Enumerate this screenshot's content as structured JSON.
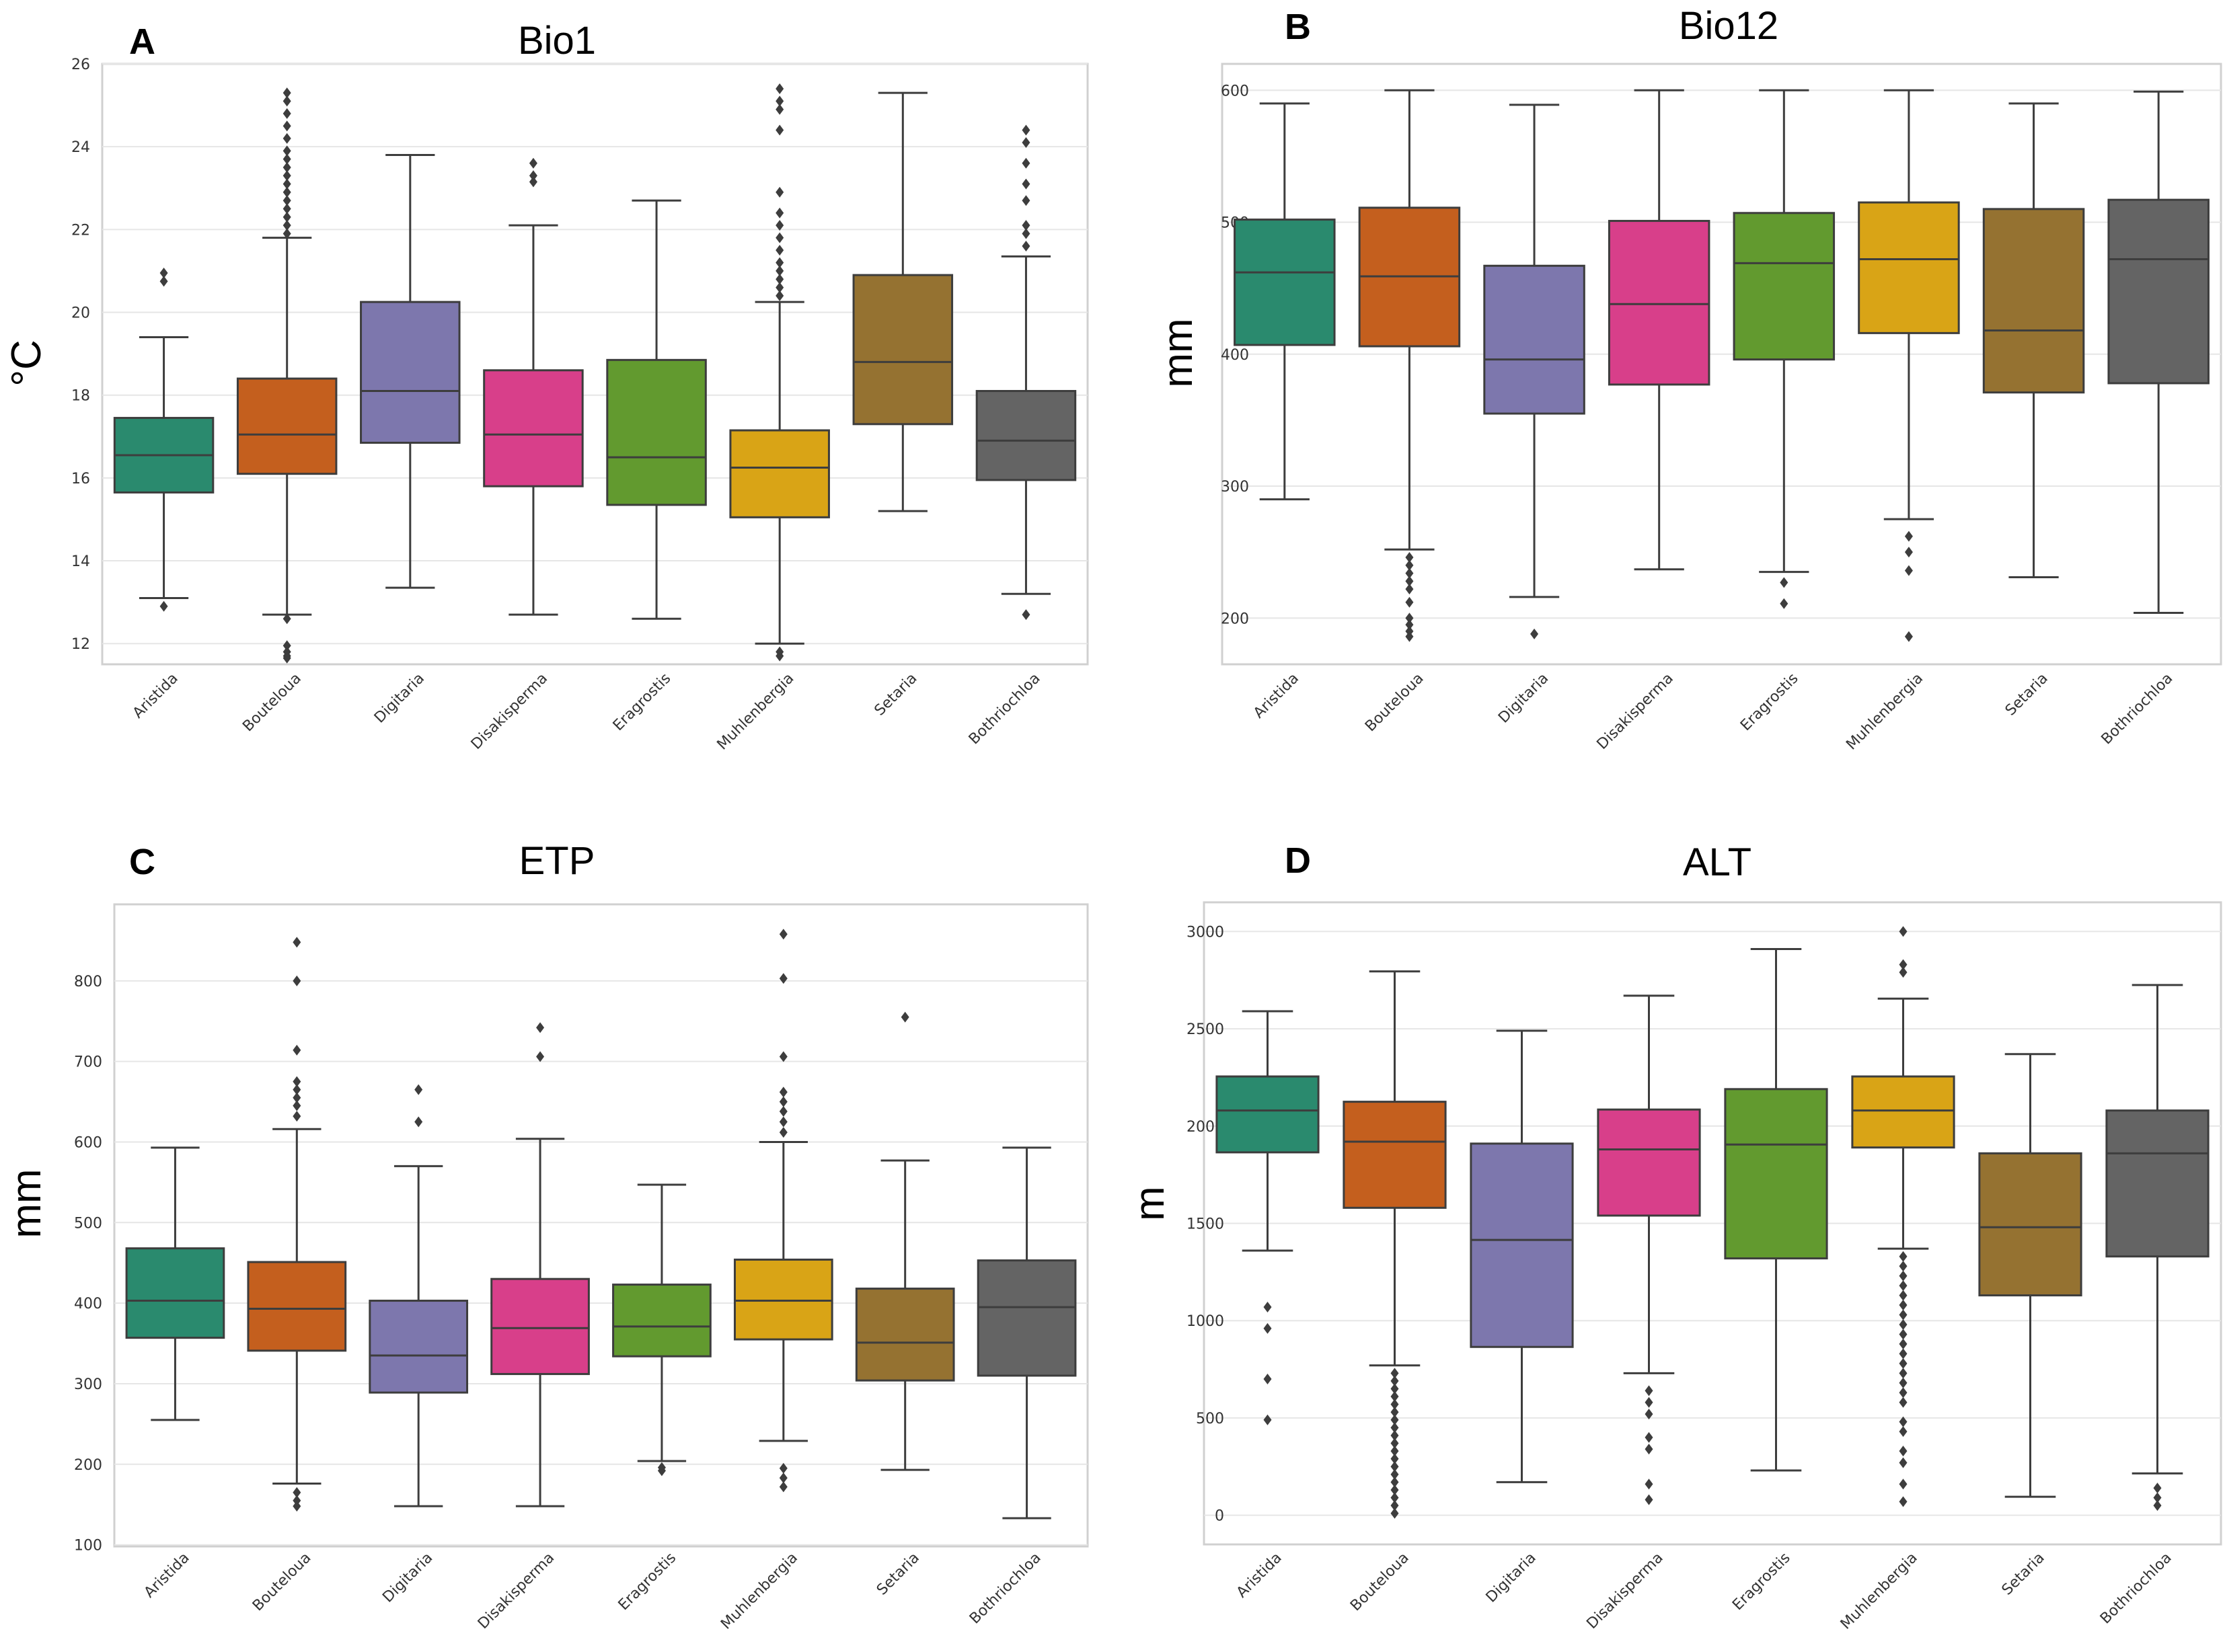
{
  "chart_data": [
    {
      "type": "box",
      "panel": "A",
      "title": "Bio1",
      "ylabel": "°C",
      "ylim": [
        11.5,
        26
      ],
      "yticks": [
        12,
        14,
        16,
        18,
        20,
        22,
        24,
        26
      ],
      "categories": [
        "Aristida",
        "Bouteloua",
        "Digitaria",
        "Disakisperma",
        "Eragrostis",
        "Muhlenbergia",
        "Setaria",
        "Bothriochloa"
      ],
      "colors": [
        "#2a8a6e",
        "#c45f1e",
        "#7d77ad",
        "#d83f8a",
        "#629a2f",
        "#d9a416",
        "#957231",
        "#646464"
      ],
      "boxes": [
        {
          "whislo": 13.1,
          "q1": 15.65,
          "med": 16.55,
          "q3": 17.45,
          "whishi": 19.4,
          "fliers": [
            12.9,
            20.75,
            20.95
          ]
        },
        {
          "whislo": 12.7,
          "q1": 16.1,
          "med": 17.05,
          "q3": 18.4,
          "whishi": 21.8,
          "fliers": [
            12.6,
            11.95,
            11.8,
            11.7,
            11.65,
            21.9,
            22.1,
            22.3,
            22.5,
            22.7,
            22.9,
            23.1,
            23.3,
            23.5,
            23.7,
            23.9,
            24.2,
            24.5,
            24.8,
            25.1,
            25.3
          ]
        },
        {
          "whislo": 13.35,
          "q1": 16.85,
          "med": 18.1,
          "q3": 20.25,
          "whishi": 23.8,
          "fliers": []
        },
        {
          "whislo": 12.7,
          "q1": 15.8,
          "med": 17.05,
          "q3": 18.6,
          "whishi": 22.1,
          "fliers": [
            23.15,
            23.3,
            23.6
          ]
        },
        {
          "whislo": 12.6,
          "q1": 15.35,
          "med": 16.5,
          "q3": 18.85,
          "whishi": 22.7,
          "fliers": []
        },
        {
          "whislo": 12.0,
          "q1": 15.05,
          "med": 16.25,
          "q3": 17.15,
          "whishi": 20.25,
          "fliers": [
            11.8,
            11.7,
            20.4,
            20.6,
            20.8,
            21.0,
            21.2,
            21.5,
            21.8,
            22.1,
            22.4,
            22.9,
            24.4,
            24.9,
            25.1,
            25.4
          ]
        },
        {
          "whislo": 15.2,
          "q1": 17.3,
          "med": 18.8,
          "q3": 20.9,
          "whishi": 25.3,
          "fliers": []
        },
        {
          "whislo": 13.2,
          "q1": 15.95,
          "med": 16.9,
          "q3": 18.1,
          "whishi": 21.35,
          "fliers": [
            12.7,
            21.6,
            21.9,
            22.1,
            22.7,
            23.1,
            23.6,
            24.1,
            24.4
          ]
        }
      ]
    },
    {
      "type": "box",
      "panel": "B",
      "title": "Bio12",
      "ylabel": "mm",
      "ylim": [
        165,
        620
      ],
      "yticks": [
        200,
        300,
        400,
        500,
        600
      ],
      "categories": [
        "Aristida",
        "Bouteloua",
        "Digitaria",
        "Disakisperma",
        "Eragrostis",
        "Muhlenbergia",
        "Setaria",
        "Bothriochloa"
      ],
      "colors": [
        "#2a8a6e",
        "#c45f1e",
        "#7d77ad",
        "#d83f8a",
        "#629a2f",
        "#d9a416",
        "#957231",
        "#646464"
      ],
      "boxes": [
        {
          "whislo": 290,
          "q1": 407,
          "med": 462,
          "q3": 502,
          "whishi": 590,
          "fliers": []
        },
        {
          "whislo": 252,
          "q1": 406,
          "med": 459,
          "q3": 511,
          "whishi": 600,
          "fliers": [
            246,
            240,
            234,
            228,
            222,
            212,
            200,
            195,
            190,
            186
          ]
        },
        {
          "whislo": 216,
          "q1": 355,
          "med": 396,
          "q3": 467,
          "whishi": 589,
          "fliers": [
            188
          ]
        },
        {
          "whislo": 237,
          "q1": 377,
          "med": 438,
          "q3": 501,
          "whishi": 600,
          "fliers": []
        },
        {
          "whislo": 235,
          "q1": 396,
          "med": 469,
          "q3": 507,
          "whishi": 600,
          "fliers": [
            227,
            211
          ]
        },
        {
          "whislo": 275,
          "q1": 416,
          "med": 472,
          "q3": 515,
          "whishi": 600,
          "fliers": [
            262,
            250,
            236,
            186
          ]
        },
        {
          "whislo": 231,
          "q1": 371,
          "med": 418,
          "q3": 510,
          "whishi": 590,
          "fliers": []
        },
        {
          "whislo": 204,
          "q1": 378,
          "med": 472,
          "q3": 517,
          "whishi": 599,
          "fliers": []
        }
      ]
    },
    {
      "type": "box",
      "panel": "C",
      "title": "ETP",
      "ylabel": "mm",
      "ylim": [
        98,
        895
      ],
      "yticks": [
        100,
        200,
        300,
        400,
        500,
        600,
        700,
        800
      ],
      "categories": [
        "Aristida",
        "Bouteloua",
        "Digitaria",
        "Disakisperma",
        "Eragrostis",
        "Muhlenbergia",
        "Setaria",
        "Bothriochloa"
      ],
      "colors": [
        "#2a8a6e",
        "#c45f1e",
        "#7d77ad",
        "#d83f8a",
        "#629a2f",
        "#d9a416",
        "#957231",
        "#646464"
      ],
      "boxes": [
        {
          "whislo": 255,
          "q1": 357,
          "med": 403,
          "q3": 468,
          "whishi": 593,
          "fliers": []
        },
        {
          "whislo": 176,
          "q1": 341,
          "med": 393,
          "q3": 451,
          "whishi": 616,
          "fliers": [
            165,
            155,
            148,
            632,
            645,
            655,
            665,
            675,
            714,
            800,
            848
          ]
        },
        {
          "whislo": 148,
          "q1": 289,
          "med": 335,
          "q3": 403,
          "whishi": 570,
          "fliers": [
            625,
            665
          ]
        },
        {
          "whislo": 148,
          "q1": 312,
          "med": 369,
          "q3": 430,
          "whishi": 604,
          "fliers": [
            706,
            742
          ]
        },
        {
          "whislo": 204,
          "q1": 334,
          "med": 371,
          "q3": 423,
          "whishi": 547,
          "fliers": [
            196,
            192
          ]
        },
        {
          "whislo": 229,
          "q1": 355,
          "med": 403,
          "q3": 454,
          "whishi": 600,
          "fliers": [
            195,
            183,
            172,
            612,
            625,
            638,
            650,
            662,
            706,
            803,
            858
          ]
        },
        {
          "whislo": 193,
          "q1": 304,
          "med": 351,
          "q3": 418,
          "whishi": 577,
          "fliers": [
            755
          ]
        },
        {
          "whislo": 133,
          "q1": 310,
          "med": 395,
          "q3": 453,
          "whishi": 593,
          "fliers": []
        }
      ]
    },
    {
      "type": "box",
      "panel": "D",
      "title": "ALT",
      "ylabel": "m",
      "ylim": [
        -150,
        3150
      ],
      "yticks": [
        0,
        500,
        1000,
        1500,
        2000,
        2500,
        3000
      ],
      "categories": [
        "Aristida",
        "Bouteloua",
        "Digitaria",
        "Disakisperma",
        "Eragrostis",
        "Muhlenbergia",
        "Setaria",
        "Bothriochloa"
      ],
      "colors": [
        "#2a8a6e",
        "#c45f1e",
        "#7d77ad",
        "#d83f8a",
        "#629a2f",
        "#d9a416",
        "#957231",
        "#646464"
      ],
      "boxes": [
        {
          "whislo": 1360,
          "q1": 1865,
          "med": 2080,
          "q3": 2255,
          "whishi": 2590,
          "fliers": [
            1070,
            960,
            700,
            490
          ]
        },
        {
          "whislo": 770,
          "q1": 1580,
          "med": 1920,
          "q3": 2125,
          "whishi": 2795,
          "fliers": [
            730,
            690,
            650,
            610,
            570,
            530,
            490,
            450,
            410,
            370,
            330,
            290,
            250,
            210,
            170,
            130,
            90,
            50,
            10
          ]
        },
        {
          "whislo": 170,
          "q1": 865,
          "med": 1415,
          "q3": 1910,
          "whishi": 2490,
          "fliers": []
        },
        {
          "whislo": 730,
          "q1": 1540,
          "med": 1880,
          "q3": 2085,
          "whishi": 2670,
          "fliers": [
            640,
            580,
            520,
            400,
            340,
            160,
            80
          ]
        },
        {
          "whislo": 230,
          "q1": 1320,
          "med": 1905,
          "q3": 2190,
          "whishi": 2910,
          "fliers": []
        },
        {
          "whislo": 1370,
          "q1": 1890,
          "med": 2080,
          "q3": 2255,
          "whishi": 2655,
          "fliers": [
            1330,
            1280,
            1230,
            1180,
            1130,
            1080,
            1030,
            980,
            930,
            880,
            830,
            780,
            730,
            680,
            630,
            580,
            480,
            430,
            330,
            270,
            160,
            70,
            2790,
            2830,
            3000
          ]
        },
        {
          "whislo": 95,
          "q1": 1130,
          "med": 1480,
          "q3": 1860,
          "whishi": 2370,
          "fliers": []
        },
        {
          "whislo": 215,
          "q1": 1330,
          "med": 1860,
          "q3": 2080,
          "whishi": 2725,
          "fliers": [
            140,
            90,
            50
          ]
        }
      ]
    }
  ]
}
